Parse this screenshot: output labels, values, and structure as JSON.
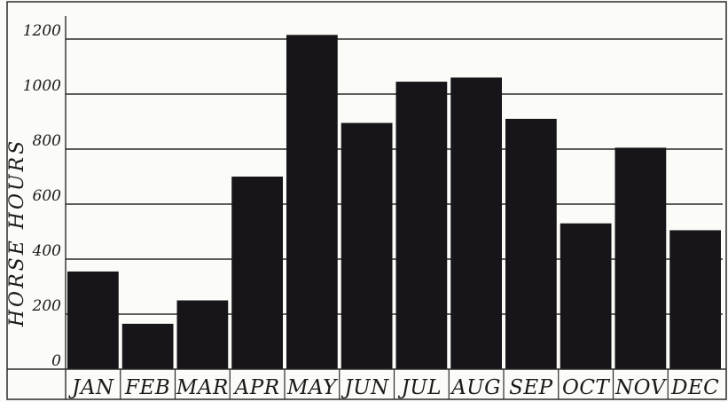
{
  "chart_data": {
    "type": "bar",
    "title": "",
    "xlabel": "",
    "ylabel": "HORSE HOURS",
    "ylim": [
      0,
      1200
    ],
    "yticks": [
      0,
      200,
      400,
      600,
      800,
      1000,
      1200
    ],
    "ytick_labels": [
      "0",
      "200",
      "400",
      "600",
      "800",
      "1000",
      "1200"
    ],
    "categories": [
      "JAN",
      "FEB",
      "MAR",
      "APR",
      "MAY",
      "JUN",
      "JUL",
      "AUG",
      "SEP",
      "OCT",
      "NOV",
      "DEC"
    ],
    "values": [
      355,
      165,
      250,
      700,
      1215,
      895,
      1045,
      1060,
      910,
      530,
      805,
      505
    ],
    "grid": true,
    "bar_color": "#17141a",
    "line_color": "#2a2a2a"
  }
}
